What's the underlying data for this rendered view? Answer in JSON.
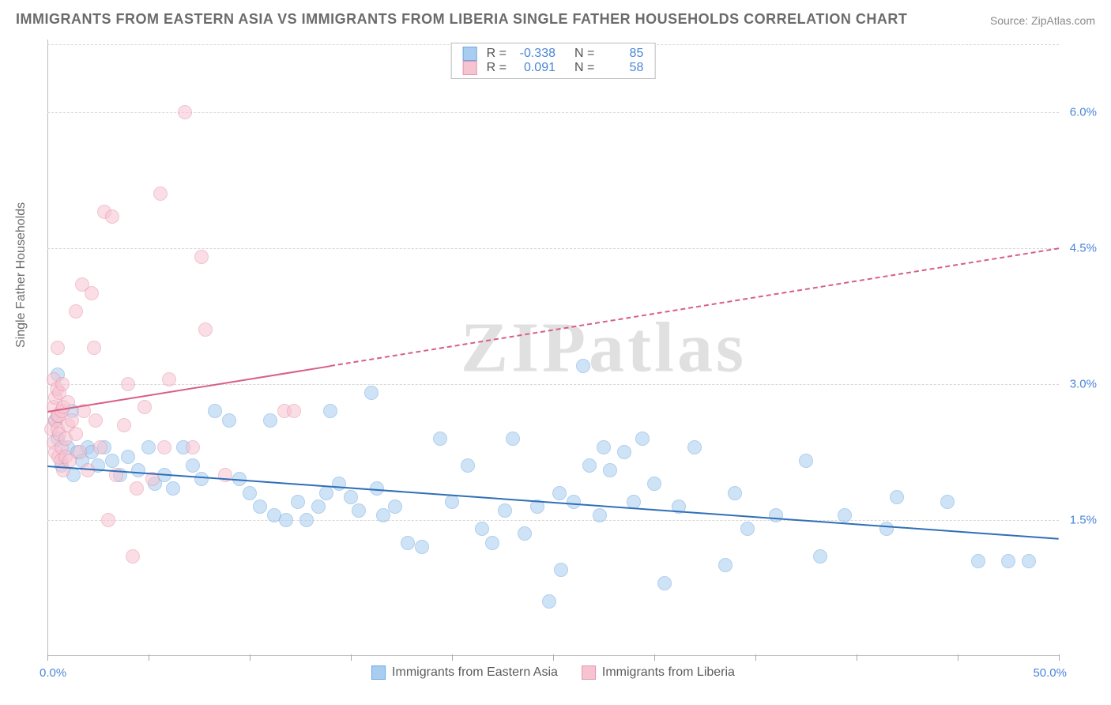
{
  "title": "IMMIGRANTS FROM EASTERN ASIA VS IMMIGRANTS FROM LIBERIA SINGLE FATHER HOUSEHOLDS CORRELATION CHART",
  "source": "Source: ZipAtlas.com",
  "y_axis_label": "Single Father Households",
  "watermark": "ZIPatlas",
  "chart": {
    "type": "scatter",
    "xlim": [
      0,
      50
    ],
    "ylim": [
      0,
      6.8
    ],
    "x_tick_label_left": "0.0%",
    "x_tick_label_right": "50.0%",
    "x_minor_ticks": [
      0,
      5,
      10,
      15,
      20,
      25,
      30,
      35,
      40,
      45,
      50
    ],
    "y_ticks": [
      {
        "v": 1.5,
        "label": "1.5%"
      },
      {
        "v": 3.0,
        "label": "3.0%"
      },
      {
        "v": 4.5,
        "label": "4.5%"
      },
      {
        "v": 6.0,
        "label": "6.0%"
      }
    ],
    "grid_color": "#d8d8d8",
    "background_color": "#ffffff",
    "point_radius": 9,
    "point_opacity": 0.55,
    "series": [
      {
        "name": "Immigrants from Eastern Asia",
        "color_fill": "#a9cdf0",
        "color_stroke": "#6fa8e0",
        "R": "-0.338",
        "N": "85",
        "regression": {
          "x1": 0,
          "y1": 2.1,
          "x2": 50,
          "y2": 1.3,
          "color": "#2f6fb8",
          "width": 2,
          "dash": false
        },
        "points": [
          [
            0.4,
            2.6
          ],
          [
            0.5,
            3.1
          ],
          [
            0.5,
            2.4
          ],
          [
            0.7,
            2.1
          ],
          [
            1.0,
            2.3
          ],
          [
            1.2,
            2.7
          ],
          [
            1.3,
            2.0
          ],
          [
            1.5,
            2.25
          ],
          [
            1.7,
            2.15
          ],
          [
            2.0,
            2.3
          ],
          [
            2.2,
            2.25
          ],
          [
            2.5,
            2.1
          ],
          [
            2.8,
            2.3
          ],
          [
            3.2,
            2.15
          ],
          [
            3.6,
            2.0
          ],
          [
            4.0,
            2.2
          ],
          [
            4.5,
            2.05
          ],
          [
            5.0,
            2.3
          ],
          [
            5.3,
            1.9
          ],
          [
            5.8,
            2.0
          ],
          [
            6.2,
            1.85
          ],
          [
            6.7,
            2.3
          ],
          [
            7.2,
            2.1
          ],
          [
            7.6,
            1.95
          ],
          [
            8.3,
            2.7
          ],
          [
            9.0,
            2.6
          ],
          [
            9.5,
            1.95
          ],
          [
            10.0,
            1.8
          ],
          [
            10.5,
            1.65
          ],
          [
            11.0,
            2.6
          ],
          [
            11.2,
            1.55
          ],
          [
            11.8,
            1.5
          ],
          [
            12.4,
            1.7
          ],
          [
            12.8,
            1.5
          ],
          [
            13.4,
            1.65
          ],
          [
            13.8,
            1.8
          ],
          [
            14.0,
            2.7
          ],
          [
            14.4,
            1.9
          ],
          [
            15.0,
            1.75
          ],
          [
            15.4,
            1.6
          ],
          [
            16.0,
            2.9
          ],
          [
            16.3,
            1.85
          ],
          [
            16.6,
            1.55
          ],
          [
            17.2,
            1.65
          ],
          [
            17.8,
            1.25
          ],
          [
            18.5,
            1.2
          ],
          [
            19.4,
            2.4
          ],
          [
            20.0,
            1.7
          ],
          [
            20.8,
            2.1
          ],
          [
            21.5,
            1.4
          ],
          [
            22.0,
            1.25
          ],
          [
            22.6,
            1.6
          ],
          [
            23.0,
            2.4
          ],
          [
            23.6,
            1.35
          ],
          [
            24.2,
            1.65
          ],
          [
            24.8,
            0.6
          ],
          [
            25.3,
            1.8
          ],
          [
            25.4,
            0.95
          ],
          [
            26.0,
            1.7
          ],
          [
            26.5,
            3.2
          ],
          [
            26.8,
            2.1
          ],
          [
            27.3,
            1.55
          ],
          [
            27.5,
            2.3
          ],
          [
            27.8,
            2.05
          ],
          [
            28.5,
            2.25
          ],
          [
            29.0,
            1.7
          ],
          [
            29.4,
            2.4
          ],
          [
            30.0,
            1.9
          ],
          [
            30.5,
            0.8
          ],
          [
            31.2,
            1.65
          ],
          [
            32.0,
            2.3
          ],
          [
            33.5,
            1.0
          ],
          [
            34.0,
            1.8
          ],
          [
            34.6,
            1.4
          ],
          [
            36.0,
            1.55
          ],
          [
            37.5,
            2.15
          ],
          [
            38.2,
            1.1
          ],
          [
            39.4,
            1.55
          ],
          [
            41.5,
            1.4
          ],
          [
            42.0,
            1.75
          ],
          [
            44.5,
            1.7
          ],
          [
            46.0,
            1.05
          ],
          [
            47.5,
            1.05
          ],
          [
            48.5,
            1.05
          ]
        ]
      },
      {
        "name": "Immigrants from Liberia",
        "color_fill": "#f6c3d1",
        "color_stroke": "#e695ad",
        "R": "0.091",
        "N": "58",
        "regression": {
          "x1": 0,
          "y1": 2.7,
          "x2": 50,
          "y2": 4.5,
          "color": "#d85f85",
          "width": 2,
          "dash_from_x": 14
        },
        "points": [
          [
            0.2,
            2.5
          ],
          [
            0.3,
            2.75
          ],
          [
            0.3,
            3.05
          ],
          [
            0.3,
            2.35
          ],
          [
            0.4,
            2.85
          ],
          [
            0.4,
            2.25
          ],
          [
            0.4,
            2.6
          ],
          [
            0.45,
            2.95
          ],
          [
            0.5,
            3.4
          ],
          [
            0.5,
            2.65
          ],
          [
            0.5,
            2.5
          ],
          [
            0.55,
            2.2
          ],
          [
            0.55,
            2.65
          ],
          [
            0.6,
            2.9
          ],
          [
            0.6,
            2.45
          ],
          [
            0.65,
            2.15
          ],
          [
            0.7,
            2.7
          ],
          [
            0.7,
            2.3
          ],
          [
            0.75,
            3.0
          ],
          [
            0.8,
            2.05
          ],
          [
            0.8,
            2.75
          ],
          [
            0.9,
            2.4
          ],
          [
            0.9,
            2.2
          ],
          [
            1.0,
            2.55
          ],
          [
            1.0,
            2.8
          ],
          [
            1.1,
            2.15
          ],
          [
            1.2,
            2.6
          ],
          [
            1.4,
            3.8
          ],
          [
            1.4,
            2.45
          ],
          [
            1.6,
            2.25
          ],
          [
            1.7,
            4.1
          ],
          [
            1.8,
            2.7
          ],
          [
            2.0,
            2.05
          ],
          [
            2.2,
            4.0
          ],
          [
            2.3,
            3.4
          ],
          [
            2.4,
            2.6
          ],
          [
            2.6,
            2.3
          ],
          [
            2.8,
            4.9
          ],
          [
            3.0,
            1.5
          ],
          [
            3.2,
            4.85
          ],
          [
            3.4,
            2.0
          ],
          [
            3.8,
            2.55
          ],
          [
            4.0,
            3.0
          ],
          [
            4.2,
            1.1
          ],
          [
            4.4,
            1.85
          ],
          [
            4.8,
            2.75
          ],
          [
            5.2,
            1.95
          ],
          [
            5.6,
            5.1
          ],
          [
            5.8,
            2.3
          ],
          [
            6.0,
            3.05
          ],
          [
            6.8,
            6.0
          ],
          [
            7.2,
            2.3
          ],
          [
            7.6,
            4.4
          ],
          [
            7.8,
            3.6
          ],
          [
            8.8,
            2.0
          ],
          [
            11.7,
            2.7
          ],
          [
            12.2,
            2.7
          ]
        ]
      }
    ]
  },
  "stat_box": {
    "rows": [
      {
        "swatch_fill": "#a9cdf0",
        "swatch_stroke": "#6fa8e0",
        "r_label": "R =",
        "r_val": "-0.338",
        "n_label": "N =",
        "n_val": "85"
      },
      {
        "swatch_fill": "#f6c3d1",
        "swatch_stroke": "#e695ad",
        "r_label": "R =",
        "r_val": "0.091",
        "n_label": "N =",
        "n_val": "58"
      }
    ]
  },
  "bottom_legend": [
    {
      "swatch_fill": "#a9cdf0",
      "swatch_stroke": "#6fa8e0",
      "label": "Immigrants from Eastern Asia"
    },
    {
      "swatch_fill": "#f6c3d1",
      "swatch_stroke": "#e695ad",
      "label": "Immigrants from Liberia"
    }
  ]
}
